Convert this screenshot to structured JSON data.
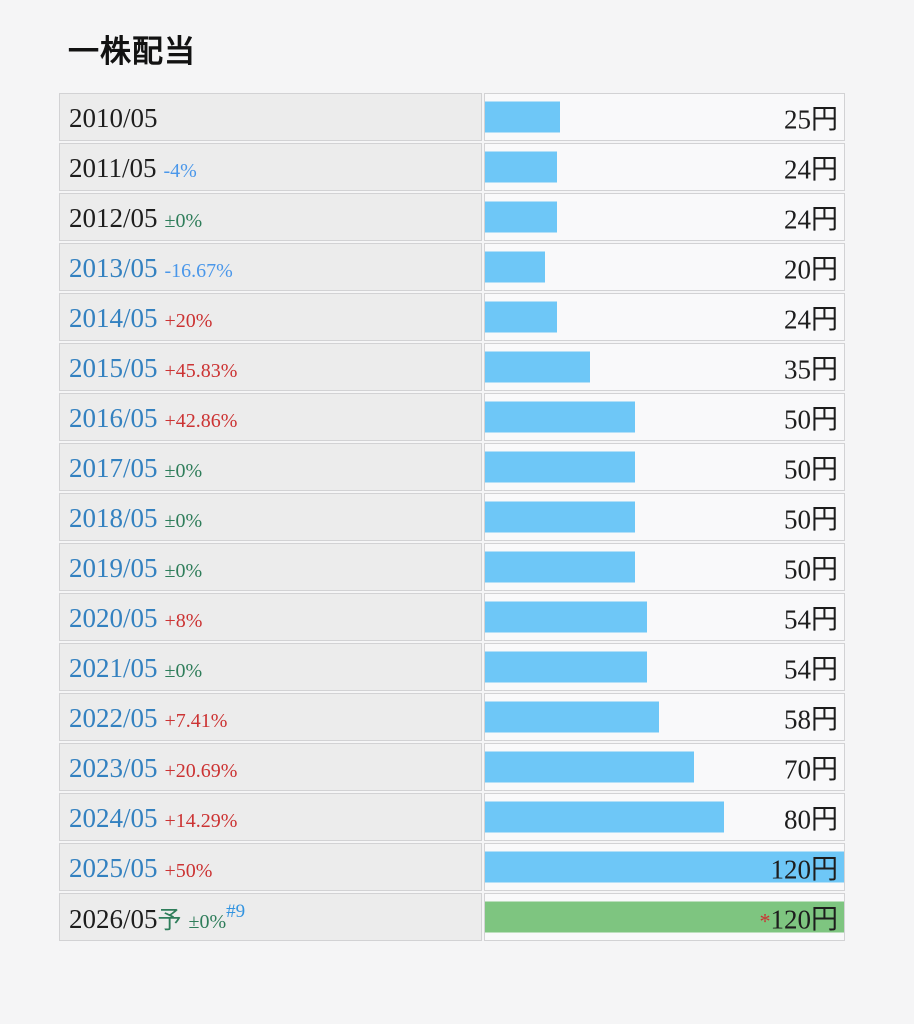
{
  "page": {
    "title": "一株配当"
  },
  "colors": {
    "background": "#f5f5f6",
    "cell_left_bg": "#ececec",
    "cell_right_bg": "#f9f9fa",
    "cell_border": "#d2d2d4",
    "bar_blue": "#6ec7f7",
    "bar_green": "#7ec580",
    "year_link_blue": "#3381c0",
    "pct_up_red": "#cc3333",
    "pct_down_blue": "#4a97ea",
    "pct_flat_green": "#2e7d5a",
    "note_blue": "#3394e0",
    "text_black": "#1d1d1d"
  },
  "chart_data": {
    "type": "bar",
    "orientation": "horizontal",
    "title": "一株配当",
    "unit": "円",
    "value_axis_max": 120,
    "rows": [
      {
        "year": "2010/05",
        "year_is_link": false,
        "forecast_suffix": "",
        "pct": "",
        "pct_kind": "none",
        "note": "",
        "value": 25,
        "value_label": "25円",
        "value_prefix": "",
        "bar_color": "blue"
      },
      {
        "year": "2011/05",
        "year_is_link": false,
        "forecast_suffix": "",
        "pct": "-4%",
        "pct_kind": "down",
        "note": "",
        "value": 24,
        "value_label": "24円",
        "value_prefix": "",
        "bar_color": "blue"
      },
      {
        "year": "2012/05",
        "year_is_link": false,
        "forecast_suffix": "",
        "pct": "±0%",
        "pct_kind": "flat",
        "note": "",
        "value": 24,
        "value_label": "24円",
        "value_prefix": "",
        "bar_color": "blue"
      },
      {
        "year": "2013/05",
        "year_is_link": true,
        "forecast_suffix": "",
        "pct": "-16.67%",
        "pct_kind": "down",
        "note": "",
        "value": 20,
        "value_label": "20円",
        "value_prefix": "",
        "bar_color": "blue"
      },
      {
        "year": "2014/05",
        "year_is_link": true,
        "forecast_suffix": "",
        "pct": "+20%",
        "pct_kind": "up",
        "note": "",
        "value": 24,
        "value_label": "24円",
        "value_prefix": "",
        "bar_color": "blue"
      },
      {
        "year": "2015/05",
        "year_is_link": true,
        "forecast_suffix": "",
        "pct": "+45.83%",
        "pct_kind": "up",
        "note": "",
        "value": 35,
        "value_label": "35円",
        "value_prefix": "",
        "bar_color": "blue"
      },
      {
        "year": "2016/05",
        "year_is_link": true,
        "forecast_suffix": "",
        "pct": "+42.86%",
        "pct_kind": "up",
        "note": "",
        "value": 50,
        "value_label": "50円",
        "value_prefix": "",
        "bar_color": "blue"
      },
      {
        "year": "2017/05",
        "year_is_link": true,
        "forecast_suffix": "",
        "pct": "±0%",
        "pct_kind": "flat",
        "note": "",
        "value": 50,
        "value_label": "50円",
        "value_prefix": "",
        "bar_color": "blue"
      },
      {
        "year": "2018/05",
        "year_is_link": true,
        "forecast_suffix": "",
        "pct": "±0%",
        "pct_kind": "flat",
        "note": "",
        "value": 50,
        "value_label": "50円",
        "value_prefix": "",
        "bar_color": "blue"
      },
      {
        "year": "2019/05",
        "year_is_link": true,
        "forecast_suffix": "",
        "pct": "±0%",
        "pct_kind": "flat",
        "note": "",
        "value": 50,
        "value_label": "50円",
        "value_prefix": "",
        "bar_color": "blue"
      },
      {
        "year": "2020/05",
        "year_is_link": true,
        "forecast_suffix": "",
        "pct": "+8%",
        "pct_kind": "up",
        "note": "",
        "value": 54,
        "value_label": "54円",
        "value_prefix": "",
        "bar_color": "blue"
      },
      {
        "year": "2021/05",
        "year_is_link": true,
        "forecast_suffix": "",
        "pct": "±0%",
        "pct_kind": "flat",
        "note": "",
        "value": 54,
        "value_label": "54円",
        "value_prefix": "",
        "bar_color": "blue"
      },
      {
        "year": "2022/05",
        "year_is_link": true,
        "forecast_suffix": "",
        "pct": "+7.41%",
        "pct_kind": "up",
        "note": "",
        "value": 58,
        "value_label": "58円",
        "value_prefix": "",
        "bar_color": "blue"
      },
      {
        "year": "2023/05",
        "year_is_link": true,
        "forecast_suffix": "",
        "pct": "+20.69%",
        "pct_kind": "up",
        "note": "",
        "value": 70,
        "value_label": "70円",
        "value_prefix": "",
        "bar_color": "blue"
      },
      {
        "year": "2024/05",
        "year_is_link": true,
        "forecast_suffix": "",
        "pct": "+14.29%",
        "pct_kind": "up",
        "note": "",
        "value": 80,
        "value_label": "80円",
        "value_prefix": "",
        "bar_color": "blue"
      },
      {
        "year": "2025/05",
        "year_is_link": true,
        "forecast_suffix": "",
        "pct": "+50%",
        "pct_kind": "up",
        "note": "",
        "value": 120,
        "value_label": "120円",
        "value_prefix": "",
        "bar_color": "blue"
      },
      {
        "year": "2026/05",
        "year_is_link": false,
        "forecast_suffix": "予",
        "pct": "±0%",
        "pct_kind": "flat",
        "note": "#9",
        "value": 120,
        "value_label": "120円",
        "value_prefix": "*",
        "bar_color": "green"
      }
    ]
  }
}
